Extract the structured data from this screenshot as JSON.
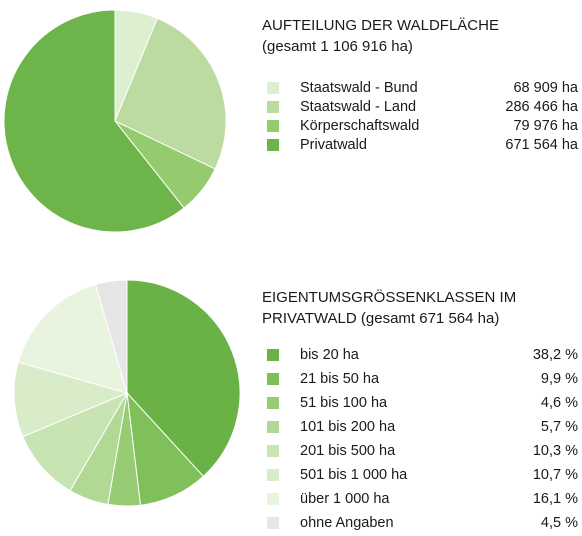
{
  "chart_data": [
    {
      "type": "pie",
      "title": "AUFTEILUNG DER WALDFLÄCHE",
      "subtitle": "(gesamt 1 106 916 ha)",
      "categories": [
        "Staatswald - Bund",
        "Staatswald - Land",
        "Körperschaftswald",
        "Privatwald"
      ],
      "values": [
        68909,
        286466,
        79976,
        671564
      ],
      "value_labels": [
        "68 909 ha",
        "286 466 ha",
        "79 976 ha",
        "671 564 ha"
      ],
      "colors": [
        "#dcefcf",
        "#bcdba0",
        "#94cb6e",
        "#6db54a"
      ]
    },
    {
      "type": "pie",
      "title": "EIGENTUMSGRÖSSENKLASSEN IM",
      "subtitle": "PRIVATWALD (gesamt 671 564 ha)",
      "categories": [
        "bis 20 ha",
        "21 bis 50 ha",
        "51 bis 100 ha",
        "101 bis 200 ha",
        "201 bis 500 ha",
        "501 bis 1 000 ha",
        "über 1 000 ha",
        "ohne Angaben"
      ],
      "values": [
        38.2,
        9.9,
        4.6,
        5.7,
        10.3,
        10.7,
        16.1,
        4.5
      ],
      "value_labels": [
        "38,2 %",
        "9,9 %",
        "4,6 %",
        "5,7 %",
        "10,3 %",
        "10,7 %",
        "16,1 %",
        "4,5 %"
      ],
      "colors": [
        "#6ab246",
        "#80c05a",
        "#98cc74",
        "#b1d995",
        "#c8e4b2",
        "#d9ecc9",
        "#e9f4df",
        "#e6e6e6"
      ]
    }
  ]
}
